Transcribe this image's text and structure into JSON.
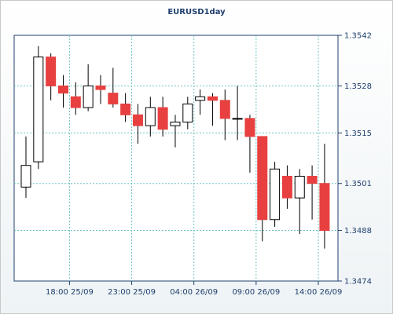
{
  "chart_data": {
    "type": "candlestick",
    "title": "EURUSD1day",
    "xlabel": "",
    "ylabel": "",
    "ylim": [
      1.3474,
      1.3542
    ],
    "y_ticks": [
      "1.3542",
      "1.3528",
      "1.3515",
      "1.3501",
      "1.3488",
      "1.3474"
    ],
    "x_ticks": [
      {
        "label": "18:00 25/09",
        "at": 4
      },
      {
        "label": "23:00 25/09",
        "at": 9
      },
      {
        "label": "04:00 26/09",
        "at": 14
      },
      {
        "label": "09:00 26/09",
        "at": 19
      },
      {
        "label": "14:00 26/09",
        "at": 24
      }
    ],
    "grid": true,
    "colors": {
      "bull": "#ffffff",
      "bear": "#e84040",
      "wick": "#000000",
      "grid": "#6fc3c3",
      "axis": "#1f3f6e"
    },
    "candles": [
      {
        "o": 1.35,
        "h": 1.3514,
        "l": 1.3497,
        "c": 1.3506
      },
      {
        "o": 1.3507,
        "h": 1.3539,
        "l": 1.3505,
        "c": 1.3536
      },
      {
        "o": 1.3536,
        "h": 1.3537,
        "l": 1.3524,
        "c": 1.3528
      },
      {
        "o": 1.3528,
        "h": 1.3531,
        "l": 1.3522,
        "c": 1.3526
      },
      {
        "o": 1.3525,
        "h": 1.3529,
        "l": 1.352,
        "c": 1.3522
      },
      {
        "o": 1.3522,
        "h": 1.3534,
        "l": 1.3521,
        "c": 1.3528
      },
      {
        "o": 1.3528,
        "h": 1.3531,
        "l": 1.3523,
        "c": 1.3527
      },
      {
        "o": 1.3526,
        "h": 1.3533,
        "l": 1.3522,
        "c": 1.3523
      },
      {
        "o": 1.3523,
        "h": 1.3526,
        "l": 1.3518,
        "c": 1.352
      },
      {
        "o": 1.352,
        "h": 1.3523,
        "l": 1.3512,
        "c": 1.3517
      },
      {
        "o": 1.3517,
        "h": 1.3525,
        "l": 1.3514,
        "c": 1.3522
      },
      {
        "o": 1.3522,
        "h": 1.3525,
        "l": 1.3514,
        "c": 1.3516
      },
      {
        "o": 1.3517,
        "h": 1.352,
        "l": 1.3511,
        "c": 1.3518
      },
      {
        "o": 1.3518,
        "h": 1.3525,
        "l": 1.3516,
        "c": 1.3523
      },
      {
        "o": 1.3524,
        "h": 1.3527,
        "l": 1.352,
        "c": 1.3525
      },
      {
        "o": 1.3525,
        "h": 1.3526,
        "l": 1.3517,
        "c": 1.3524
      },
      {
        "o": 1.3524,
        "h": 1.3527,
        "l": 1.3513,
        "c": 1.3519
      },
      {
        "o": 1.3519,
        "h": 1.3528,
        "l": 1.3513,
        "c": 1.3519
      },
      {
        "o": 1.3519,
        "h": 1.352,
        "l": 1.3504,
        "c": 1.3514
      },
      {
        "o": 1.3514,
        "h": 1.3514,
        "l": 1.3485,
        "c": 1.3491
      },
      {
        "o": 1.3491,
        "h": 1.3507,
        "l": 1.3489,
        "c": 1.3505
      },
      {
        "o": 1.3503,
        "h": 1.3506,
        "l": 1.3494,
        "c": 1.3497
      },
      {
        "o": 1.3497,
        "h": 1.3505,
        "l": 1.3487,
        "c": 1.3503
      },
      {
        "o": 1.3503,
        "h": 1.3506,
        "l": 1.3491,
        "c": 1.3501
      },
      {
        "o": 1.3501,
        "h": 1.3512,
        "l": 1.3483,
        "c": 1.3488
      }
    ]
  }
}
